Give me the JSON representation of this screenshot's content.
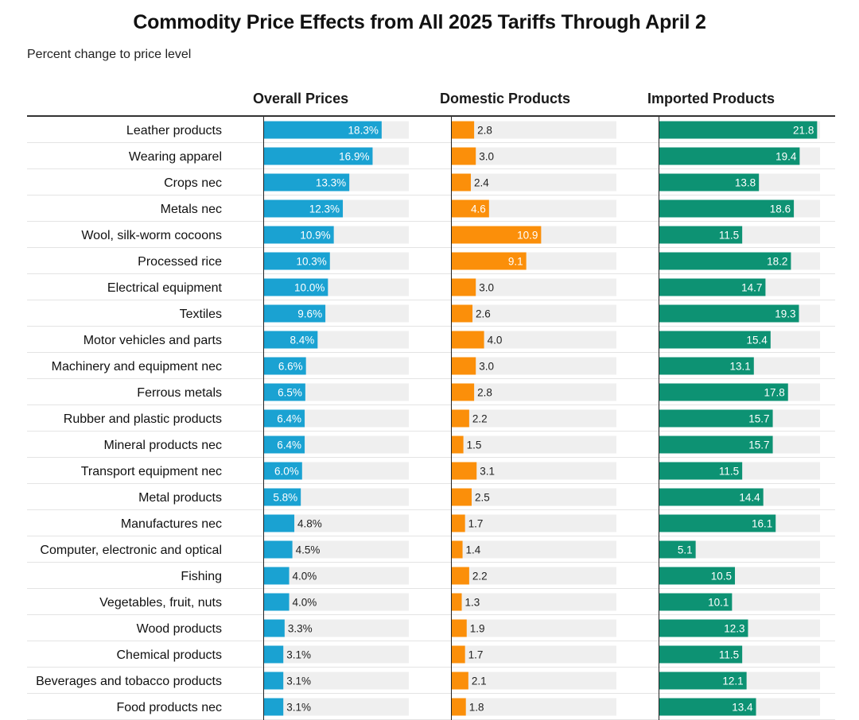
{
  "chart_data": {
    "type": "bar",
    "title": "Commodity Price Effects from All 2025 Tariffs Through April 2",
    "subtitle": "Percent change to price level",
    "categories": [
      "Leather products",
      "Wearing apparel",
      "Crops nec",
      "Metals nec",
      "Wool, silk-worm cocoons",
      "Processed rice",
      "Electrical equipment",
      "Textiles",
      "Motor vehicles and parts",
      "Machinery and equipment nec",
      "Ferrous metals",
      "Rubber and plastic products",
      "Mineral products nec",
      "Transport equipment nec",
      "Metal products",
      "Manufactures nec",
      "Computer, electronic and optical",
      "Fishing",
      "Vegetables, fruit, nuts",
      "Wood products",
      "Chemical products",
      "Beverages and tobacco products",
      "Food products nec"
    ],
    "series": [
      {
        "name": "Overall Prices",
        "color": "#1aa2d2",
        "suffix": "%",
        "xlim": [
          0,
          22.5
        ],
        "values": [
          18.3,
          16.9,
          13.3,
          12.3,
          10.9,
          10.3,
          10.0,
          9.6,
          8.4,
          6.6,
          6.5,
          6.4,
          6.4,
          6.0,
          5.8,
          4.8,
          4.5,
          4.0,
          4.0,
          3.3,
          3.1,
          3.1,
          3.1
        ]
      },
      {
        "name": "Domestic Products",
        "color": "#fb8f0a",
        "suffix": "",
        "xlim": [
          0,
          20
        ],
        "values": [
          2.8,
          3.0,
          2.4,
          4.6,
          10.9,
          9.1,
          3.0,
          2.6,
          4.0,
          3.0,
          2.8,
          2.2,
          1.5,
          3.1,
          2.5,
          1.7,
          1.4,
          2.2,
          1.3,
          1.9,
          1.7,
          2.1,
          1.8
        ]
      },
      {
        "name": "Imported Products",
        "color": "#0d9273",
        "suffix": "",
        "xlim": [
          0,
          22.2
        ],
        "values": [
          21.8,
          19.4,
          13.8,
          18.6,
          11.5,
          18.2,
          14.7,
          19.3,
          15.4,
          13.1,
          17.8,
          15.7,
          15.7,
          11.5,
          14.4,
          16.1,
          5.1,
          10.5,
          10.1,
          12.3,
          11.5,
          12.1,
          13.4
        ]
      }
    ]
  }
}
